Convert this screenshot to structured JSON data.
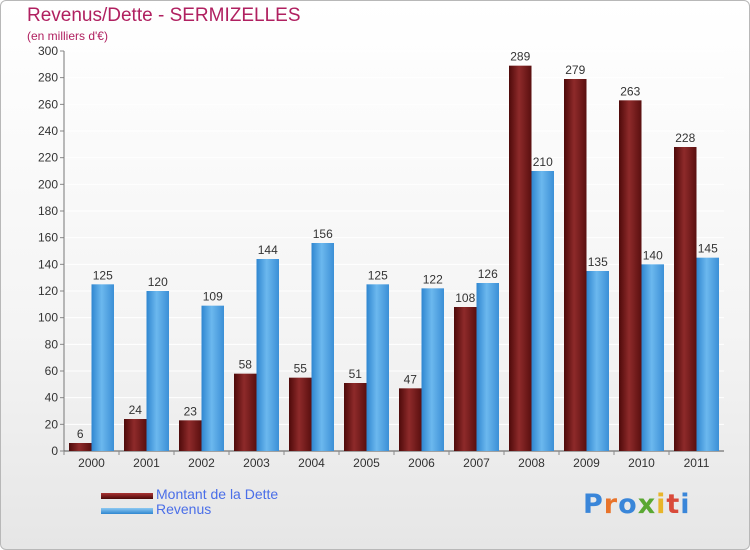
{
  "chart_data": {
    "type": "bar",
    "title": "Revenus/Dette - SERMIZELLES",
    "subtitle": "(en milliers d'€)",
    "categories": [
      "2000",
      "2001",
      "2002",
      "2003",
      "2004",
      "2005",
      "2006",
      "2007",
      "2008",
      "2009",
      "2010",
      "2011"
    ],
    "series": [
      {
        "name": "Montant de la Dette",
        "values": [
          6,
          24,
          23,
          58,
          55,
          51,
          47,
          108,
          289,
          279,
          263,
          228
        ],
        "color": "#7a1a1a"
      },
      {
        "name": "Revenus",
        "values": [
          125,
          120,
          109,
          144,
          156,
          125,
          122,
          126,
          210,
          135,
          140,
          145
        ],
        "color": "#4aa3e6"
      }
    ],
    "ylim": [
      0,
      300
    ],
    "yticks": [
      0,
      20,
      40,
      60,
      80,
      100,
      120,
      140,
      160,
      180,
      200,
      220,
      240,
      260,
      280,
      300
    ],
    "grid": true,
    "legend": "bottom-left"
  },
  "logo": {
    "letters": [
      "P",
      "r",
      "o",
      "x",
      "i",
      "t",
      "i"
    ],
    "colors": [
      "#3a86d9",
      "#e8732a",
      "#3a86d9",
      "#5aa832",
      "#e8b52a",
      "#d94a3a",
      "#3a86d9"
    ]
  }
}
